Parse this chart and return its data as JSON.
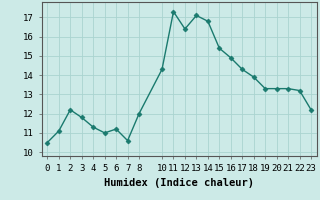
{
  "x": [
    0,
    1,
    2,
    3,
    4,
    5,
    6,
    7,
    8,
    10,
    11,
    12,
    13,
    14,
    15,
    16,
    17,
    18,
    19,
    20,
    21,
    22,
    23
  ],
  "y": [
    10.5,
    11.1,
    12.2,
    11.8,
    11.3,
    11.0,
    11.2,
    10.6,
    12.0,
    14.3,
    17.3,
    16.4,
    17.1,
    16.8,
    15.4,
    14.9,
    14.3,
    13.9,
    13.3,
    13.3,
    13.3,
    13.2,
    12.2
  ],
  "line_color": "#1a7a6e",
  "marker": "D",
  "marker_size": 2.5,
  "bg_color": "#cceae7",
  "grid_color": "#aad4d0",
  "xlabel": "Humidex (Indice chaleur)",
  "xlim": [
    -0.5,
    23.5
  ],
  "ylim": [
    9.8,
    17.8
  ],
  "yticks": [
    10,
    11,
    12,
    13,
    14,
    15,
    16,
    17
  ],
  "xtick_labels": [
    "0",
    "1",
    "2",
    "3",
    "4",
    "5",
    "6",
    "7",
    "8",
    "10",
    "11",
    "12",
    "13",
    "14",
    "15",
    "16",
    "17",
    "18",
    "19",
    "20",
    "21",
    "22",
    "23"
  ],
  "xtick_positions": [
    0,
    1,
    2,
    3,
    4,
    5,
    6,
    7,
    8,
    10,
    11,
    12,
    13,
    14,
    15,
    16,
    17,
    18,
    19,
    20,
    21,
    22,
    23
  ],
  "xlabel_fontsize": 7.5,
  "tick_fontsize": 6.5,
  "line_width": 1.0
}
